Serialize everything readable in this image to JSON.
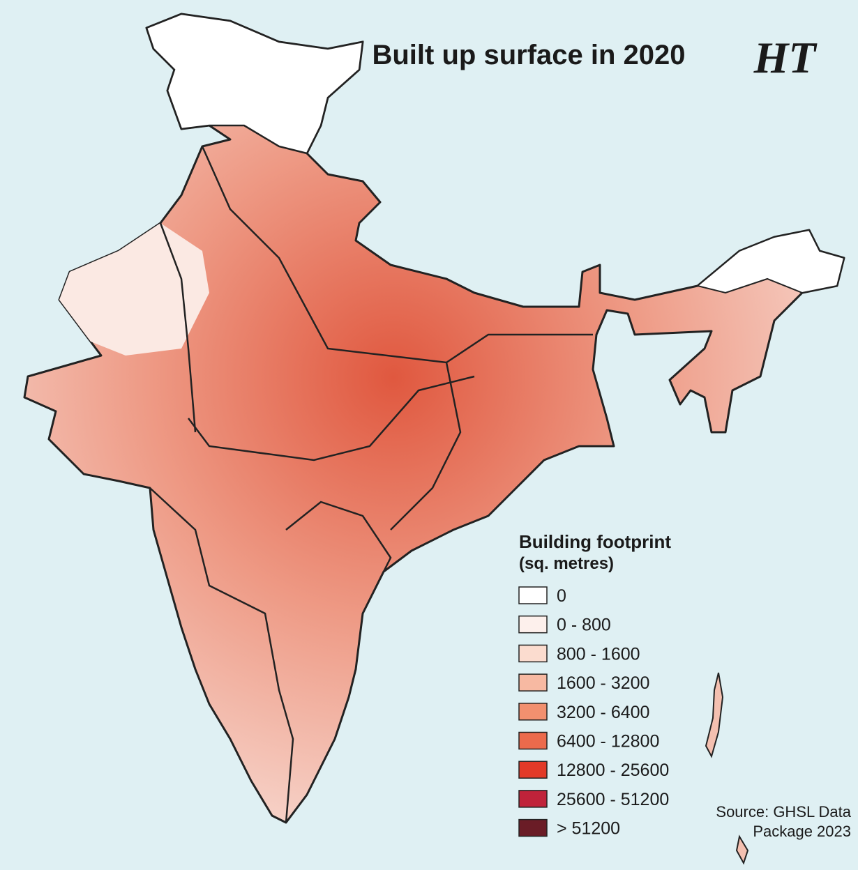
{
  "title": "Built up surface in 2020",
  "logo": "HT",
  "legend": {
    "title": "Building footprint",
    "subtitle": "(sq. metres)",
    "items": [
      {
        "label": "0",
        "color": "#ffffff"
      },
      {
        "label": "0 - 800",
        "color": "#fdf0ec"
      },
      {
        "label": "800 - 1600",
        "color": "#fbdccf"
      },
      {
        "label": "1600 - 3200",
        "color": "#f7b9a2"
      },
      {
        "label": "3200 - 6400",
        "color": "#f2906f"
      },
      {
        "label": "6400 - 12800",
        "color": "#ec6a4c"
      },
      {
        "label": "12800 - 25600",
        "color": "#e23a28"
      },
      {
        "label": "25600 - 51200",
        "color": "#c0233a"
      },
      {
        "label": "> 51200",
        "color": "#6a1c26"
      }
    ]
  },
  "source": [
    "Source: GHSL Data",
    "Package 2023"
  ]
}
